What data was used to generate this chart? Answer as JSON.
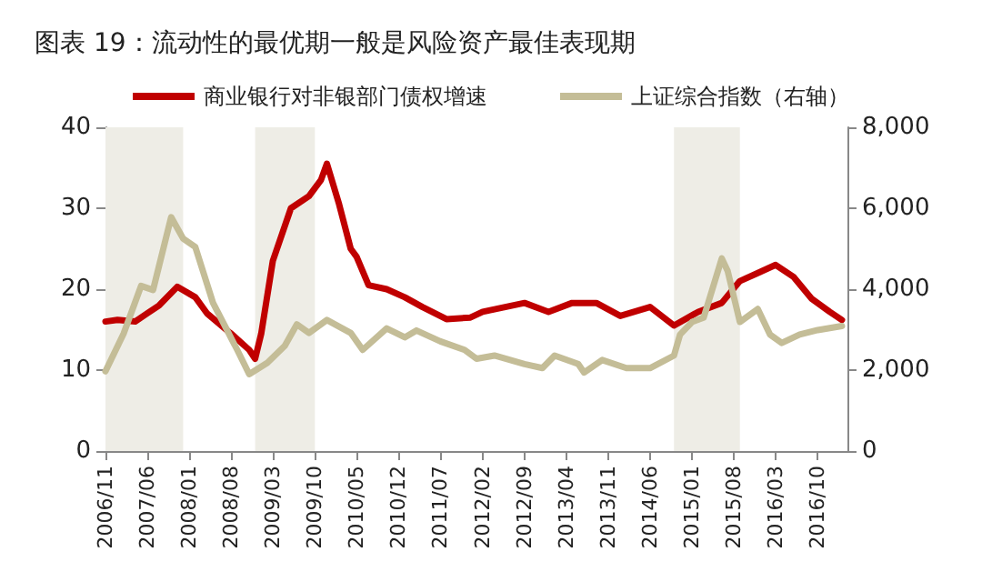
{
  "chart_data": {
    "type": "line",
    "title": "图表 19：流动性的最优期一般是风险资产最佳表现期",
    "xlim": [
      "2006-11",
      "2017-03"
    ],
    "xticks": [
      {
        "value": "2006-11",
        "label": "2006/11"
      },
      {
        "value": "2007-06",
        "label": "2007/06"
      },
      {
        "value": "2008-01",
        "label": "2008/01"
      },
      {
        "value": "2008-08",
        "label": "2008/08"
      },
      {
        "value": "2009-03",
        "label": "2009/03"
      },
      {
        "value": "2009-10",
        "label": "2009/10"
      },
      {
        "value": "2010-05",
        "label": "2010/05"
      },
      {
        "value": "2010-12",
        "label": "2010/12"
      },
      {
        "value": "2011-07",
        "label": "2011/07"
      },
      {
        "value": "2012-02",
        "label": "2012/02"
      },
      {
        "value": "2012-09",
        "label": "2012/09"
      },
      {
        "value": "2013-04",
        "label": "2013/04"
      },
      {
        "value": "2013-11",
        "label": "2013/11"
      },
      {
        "value": "2014-06",
        "label": "2014/06"
      },
      {
        "value": "2015-01",
        "label": "2015/01"
      },
      {
        "value": "2015-08",
        "label": "2015/08"
      },
      {
        "value": "2016-03",
        "label": "2016/03"
      },
      {
        "value": "2016-10",
        "label": "2016/10"
      }
    ],
    "ylim": [
      0,
      40
    ],
    "yticks": [
      0,
      10,
      20,
      30,
      40
    ],
    "y2lim": [
      0,
      8000
    ],
    "y2ticks": [
      0,
      {
        "value": 2000,
        "label": "2,000"
      },
      {
        "value": 4000,
        "label": "4,000"
      },
      {
        "value": 6000,
        "label": "6,000"
      },
      {
        "value": 8000,
        "label": "8,000"
      }
    ],
    "grid": false,
    "legend": "top",
    "marker": "none",
    "line_style": "solid",
    "bands": [
      {
        "axis": "x",
        "from": "2006-11",
        "to": "2007-12",
        "color": "#eeede6"
      },
      {
        "axis": "x",
        "from": "2008-12",
        "to": "2009-10",
        "color": "#eeede6"
      },
      {
        "axis": "x",
        "from": "2014-10",
        "to": "2015-09",
        "color": "#eeede6"
      }
    ],
    "series": [
      {
        "name": "商业银行对非银部门债权增速",
        "color": "#c00000",
        "x": [
          "2006-11",
          "2007-01",
          "2007-04",
          "2007-06",
          "2007-08",
          "2007-11",
          "2008-02",
          "2008-04",
          "2008-08",
          "2008-11",
          "2008-12",
          "2009-01",
          "2009-03",
          "2009-06",
          "2009-09",
          "2009-11",
          "2009-12",
          "2010-02",
          "2010-04",
          "2010-05",
          "2010-07",
          "2010-10",
          "2011-01",
          "2011-04",
          "2011-08",
          "2011-12",
          "2012-02",
          "2012-09",
          "2013-01",
          "2013-05",
          "2013-09",
          "2014-01",
          "2014-06",
          "2014-10",
          "2015-02",
          "2015-06",
          "2015-09",
          "2015-12",
          "2016-03",
          "2016-06",
          "2016-09",
          "2016-12",
          "2017-02"
        ],
        "values": [
          16,
          16.2,
          16,
          17,
          18,
          20.3,
          19,
          17,
          14.5,
          12.5,
          11.4,
          14.5,
          23.5,
          30,
          31.5,
          33.5,
          35.5,
          30.5,
          25,
          24,
          20.5,
          20,
          19,
          17.8,
          16.3,
          16.5,
          17.2,
          18.3,
          17.2,
          18.3,
          18.3,
          16.7,
          17.8,
          15.5,
          17.2,
          18.3,
          21,
          22,
          23,
          21.5,
          18.8,
          17.2,
          16.2
        ]
      },
      {
        "name": "上证综合指数（右轴）",
        "color": "#c4bd97",
        "axis": "y2",
        "x": [
          "2006-11",
          "2007-02",
          "2007-05",
          "2007-07",
          "2007-10",
          "2007-12",
          "2008-02",
          "2008-05",
          "2008-09",
          "2008-11",
          "2009-02",
          "2009-05",
          "2009-07",
          "2009-09",
          "2009-12",
          "2010-04",
          "2010-06",
          "2010-10",
          "2011-01",
          "2011-03",
          "2011-07",
          "2011-11",
          "2012-01",
          "2012-04",
          "2012-09",
          "2012-12",
          "2013-02",
          "2013-06",
          "2013-07",
          "2013-10",
          "2014-02",
          "2014-06",
          "2014-10",
          "2014-11",
          "2015-01",
          "2015-03",
          "2015-06",
          "2015-07",
          "2015-09",
          "2015-12",
          "2016-02",
          "2016-04",
          "2016-07",
          "2016-10",
          "2017-02"
        ],
        "values": [
          1970,
          2900,
          4080,
          3980,
          5780,
          5250,
          5040,
          3660,
          2500,
          1900,
          2180,
          2600,
          3130,
          2920,
          3240,
          2920,
          2500,
          3030,
          2810,
          2980,
          2710,
          2500,
          2280,
          2360,
          2150,
          2050,
          2360,
          2150,
          1940,
          2250,
          2050,
          2050,
          2360,
          2880,
          3190,
          3300,
          4760,
          4450,
          3190,
          3510,
          2880,
          2670,
          2880,
          2990,
          3090
        ]
      }
    ]
  }
}
